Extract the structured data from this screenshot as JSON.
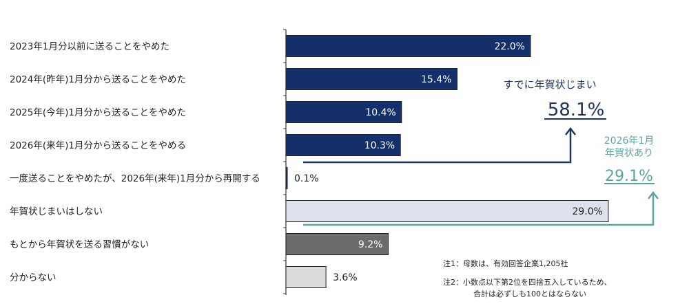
{
  "chart_data": {
    "type": "bar",
    "orientation": "horizontal",
    "categories": [
      "2023年1月分以前に送ることをやめた",
      "2024年(昨年)1月分から送ることをやめた",
      "2025年(今年)1月分から送ることをやめた",
      "2026年(来年)1月分から送ることをやめる",
      "一度送ることをやめたが、2026年(来年)1月分から再開する",
      "年賀状じまいはしない",
      "もとから年賀状を送る習慣がない",
      "分からない"
    ],
    "values": [
      22.0,
      15.4,
      10.4,
      10.3,
      0.1,
      29.0,
      9.2,
      3.6
    ],
    "value_labels": [
      "22.0%",
      "15.4%",
      "10.4%",
      "10.3%",
      "0.1%",
      "29.0%",
      "9.2%",
      "3.6%"
    ],
    "colors": [
      "#14306a",
      "#14306a",
      "#14306a",
      "#14306a",
      "#14306a",
      "#dde1ec",
      "#6b6b6b",
      "#dcdcdc"
    ],
    "label_colors": [
      "#ffffff",
      "#ffffff",
      "#ffffff",
      "#ffffff",
      "#222222",
      "#222222",
      "#ffffff",
      "#222222"
    ],
    "xlim": [
      0,
      29.5
    ],
    "grid": false,
    "title": "",
    "xlabel": "",
    "ylabel": ""
  },
  "annotations": {
    "already": {
      "label": "すでに年賀状じまい",
      "value": "58.1%",
      "color": "#1c3461"
    },
    "still": {
      "label_line1": "2026年1月",
      "label_line2": "年賀状あり",
      "value": "29.1%",
      "color": "#5aa5a0"
    }
  },
  "notes": {
    "note1": "注1：母数は、有効回答企業1,205社",
    "note2_line1": "注2：小数点以下第2位を四捨五入しているため、",
    "note2_line2": "合計は必ずしも100とはならない"
  }
}
